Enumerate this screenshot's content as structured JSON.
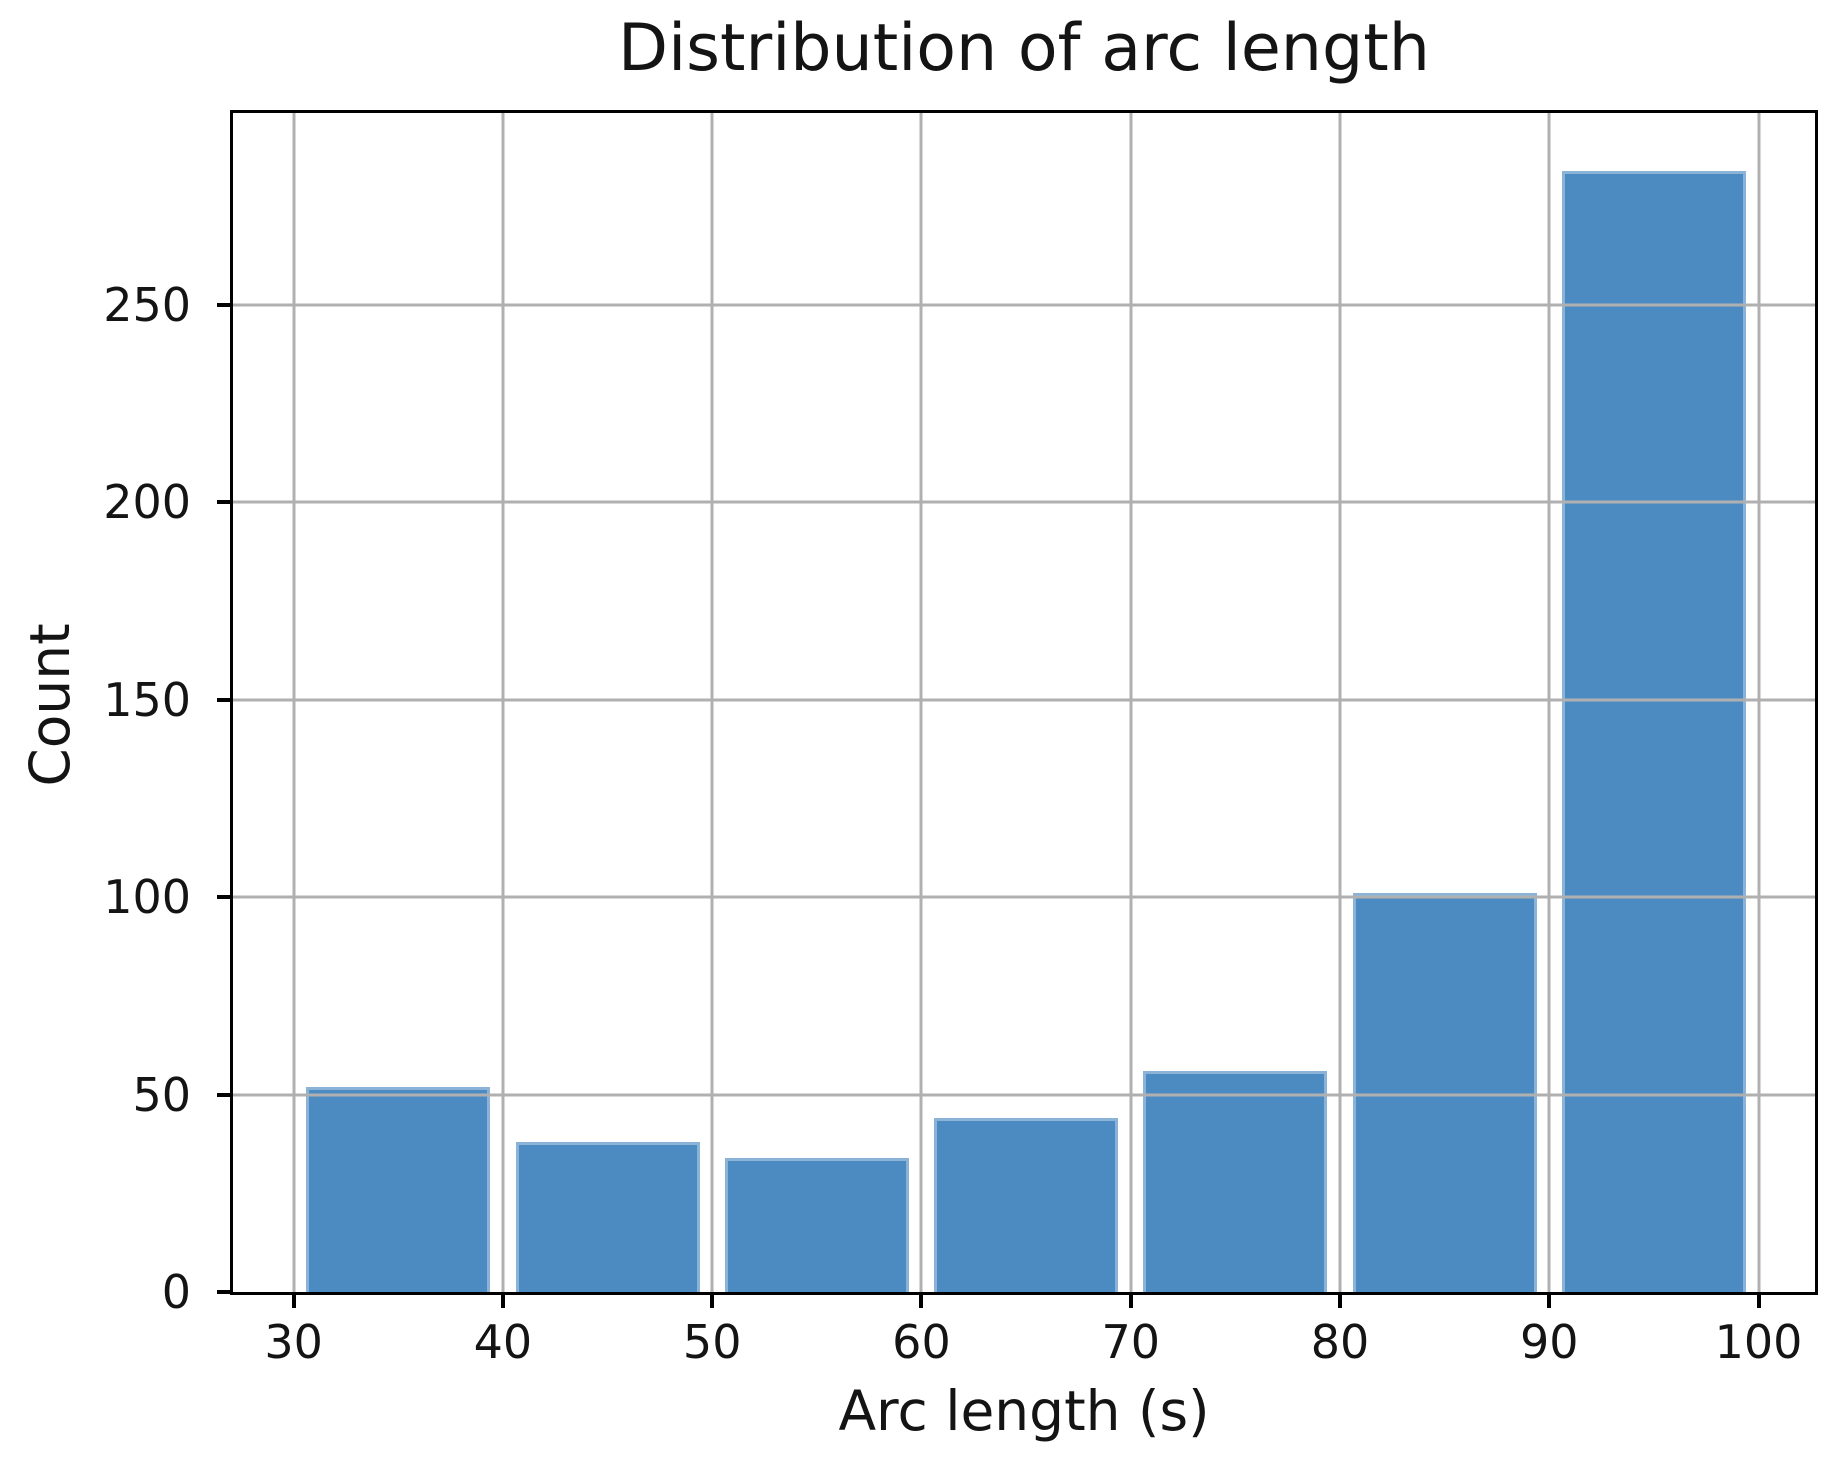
{
  "chart_data": {
    "type": "bar",
    "title": "Distribution of arc length",
    "xlabel": "Arc length (s)",
    "ylabel": "Count",
    "bin_centers": [
      35,
      45,
      55,
      65,
      75,
      85,
      95
    ],
    "bar_width": 8.8,
    "counts": [
      52,
      38,
      34,
      44,
      56,
      101,
      284
    ],
    "x_ticks": [
      30,
      40,
      50,
      60,
      70,
      80,
      90,
      100
    ],
    "y_ticks": [
      0,
      50,
      100,
      150,
      200,
      250
    ],
    "xlim": [
      27.1,
      102.7
    ],
    "ylim": [
      0,
      298.6
    ],
    "grid": true,
    "grid_on_top_of_bars": true,
    "legend": "none",
    "bar_color": "#4c8bc2",
    "bar_edge_color": "rgba(255,255,255,0.35)",
    "grid_color": "#b0b0b0",
    "axis_color": "#000000",
    "text_color": "#141414"
  }
}
